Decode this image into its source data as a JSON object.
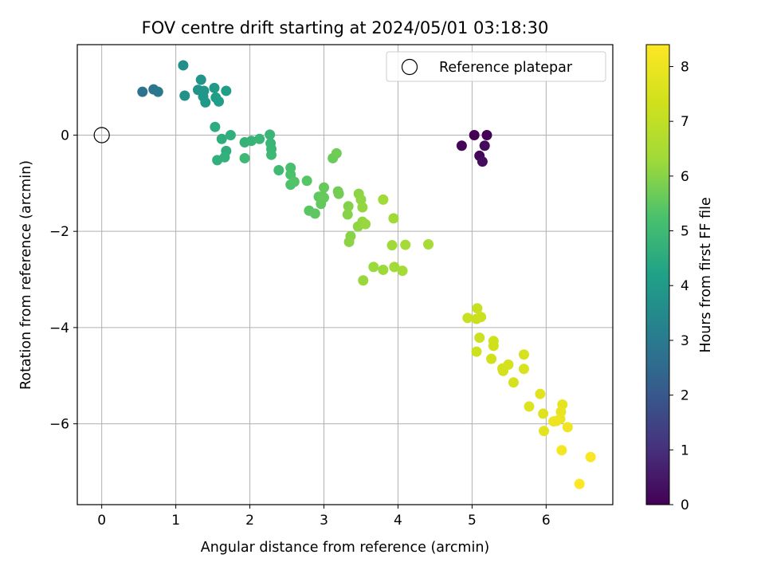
{
  "chart_data": {
    "type": "scatter",
    "title": "FOV centre drift starting at 2024/05/01 03:18:30",
    "xlabel": "Angular distance from reference (arcmin)",
    "ylabel": "Rotation from reference (arcmin)",
    "xlim": [
      -0.33,
      6.9
    ],
    "ylim": [
      -7.68,
      1.88
    ],
    "xticks": [
      0,
      1,
      2,
      3,
      4,
      5,
      6
    ],
    "yticks": [
      -6,
      -4,
      -2,
      0
    ],
    "xtick_labels": [
      "0",
      "1",
      "2",
      "3",
      "4",
      "5",
      "6"
    ],
    "ytick_labels": [
      "−6",
      "−4",
      "−2",
      "0"
    ],
    "grid": true,
    "legend": {
      "placement": "top-right",
      "entries": [
        "Reference platepar"
      ]
    },
    "reference_point": {
      "label": "Reference platepar",
      "x": 0,
      "y": 0
    },
    "colorbar": {
      "label": "Hours from first FF file",
      "colormap": "viridis",
      "range": [
        0,
        8.4
      ],
      "ticks": [
        0,
        1,
        2,
        3,
        4,
        5,
        6,
        7,
        8
      ],
      "tick_labels": [
        "0",
        "1",
        "2",
        "3",
        "4",
        "5",
        "6",
        "7",
        "8"
      ]
    },
    "series": [
      {
        "x": [
          5.03,
          5.2,
          4.86,
          5.1,
          5.17,
          5.14,
          0.55,
          0.7,
          0.76,
          1.1,
          1.12,
          1.3,
          1.34,
          1.38,
          1.37,
          1.4,
          1.52,
          1.54,
          1.58,
          1.68,
          1.53,
          1.62,
          1.68,
          1.74,
          1.56,
          1.66,
          1.93,
          2.02,
          2.13,
          2.27,
          2.28,
          2.29,
          2.29,
          1.93,
          2.39,
          2.55,
          2.55,
          2.55,
          2.6,
          2.77,
          2.8,
          2.88,
          2.93,
          2.96,
          2.98,
          3.0,
          3.0,
          3.12,
          3.17,
          3.19,
          3.2,
          3.33,
          3.32,
          3.36,
          3.34,
          3.47,
          3.46,
          3.5,
          3.52,
          3.52,
          3.56,
          3.53,
          3.67,
          3.8,
          3.92,
          3.94,
          3.8,
          3.95,
          4.06,
          4.1,
          4.41,
          5.07,
          4.94,
          5.06,
          5.12,
          5.1,
          5.06,
          5.29,
          5.29,
          5.26,
          5.42,
          5.42,
          5.49,
          5.41,
          5.56,
          5.7,
          5.7,
          5.77,
          5.96,
          5.92,
          5.97,
          6.22,
          6.2,
          6.19,
          6.1,
          6.14,
          6.29,
          6.21,
          6.6,
          6.45
        ],
        "y": [
          0.0,
          0.0,
          -0.22,
          -0.43,
          -0.22,
          -0.55,
          0.9,
          0.95,
          0.9,
          1.45,
          0.82,
          0.94,
          1.15,
          0.92,
          0.8,
          0.68,
          0.98,
          0.78,
          0.7,
          0.92,
          0.17,
          -0.08,
          -0.33,
          0.0,
          -0.52,
          -0.46,
          -0.15,
          -0.12,
          -0.08,
          0.01,
          -0.17,
          -0.29,
          -0.41,
          -0.48,
          -0.73,
          -0.68,
          -0.82,
          -1.03,
          -0.97,
          -0.95,
          -1.57,
          -1.63,
          -1.28,
          -1.43,
          -1.27,
          -1.09,
          -1.3,
          -0.48,
          -0.38,
          -1.17,
          -1.22,
          -1.48,
          -1.65,
          -2.1,
          -2.22,
          -1.22,
          -1.9,
          -1.34,
          -1.8,
          -1.5,
          -1.85,
          -3.02,
          -2.74,
          -2.8,
          -2.29,
          -1.73,
          -1.34,
          -2.74,
          -2.82,
          -2.28,
          -2.27,
          -3.6,
          -3.8,
          -3.82,
          -3.78,
          -4.21,
          -4.5,
          -4.28,
          -4.38,
          -4.65,
          -4.85,
          -4.9,
          -4.77,
          -4.85,
          -5.14,
          -4.56,
          -4.86,
          -5.64,
          -5.79,
          -5.38,
          -6.15,
          -5.6,
          -5.75,
          -5.9,
          -5.95,
          -5.94,
          -6.07,
          -6.55,
          -6.69,
          -7.25
        ],
        "hours": [
          0.0,
          0.05,
          0.1,
          0.15,
          0.2,
          0.25,
          2.75,
          2.85,
          2.95,
          3.65,
          3.7,
          3.75,
          3.8,
          3.85,
          3.9,
          3.95,
          4.0,
          4.05,
          4.1,
          4.15,
          4.55,
          4.6,
          4.6,
          4.65,
          4.65,
          4.7,
          4.75,
          4.8,
          4.85,
          4.85,
          4.9,
          4.9,
          4.95,
          4.95,
          5.0,
          5.2,
          5.25,
          5.3,
          5.35,
          5.4,
          5.45,
          5.5,
          5.5,
          5.55,
          5.55,
          5.6,
          5.6,
          5.65,
          5.7,
          5.7,
          5.75,
          5.95,
          6.0,
          6.0,
          6.05,
          6.05,
          6.1,
          6.1,
          6.15,
          6.15,
          6.2,
          6.2,
          6.25,
          6.25,
          6.3,
          6.3,
          6.35,
          6.35,
          6.4,
          6.4,
          6.45,
          7.15,
          7.2,
          7.2,
          7.25,
          7.25,
          7.3,
          7.3,
          7.35,
          7.35,
          7.4,
          7.4,
          7.45,
          7.45,
          7.5,
          7.5,
          7.55,
          7.65,
          7.7,
          7.75,
          7.8,
          7.85,
          7.9,
          7.95,
          8.0,
          8.05,
          8.1,
          8.2,
          8.3,
          8.4
        ]
      }
    ]
  }
}
